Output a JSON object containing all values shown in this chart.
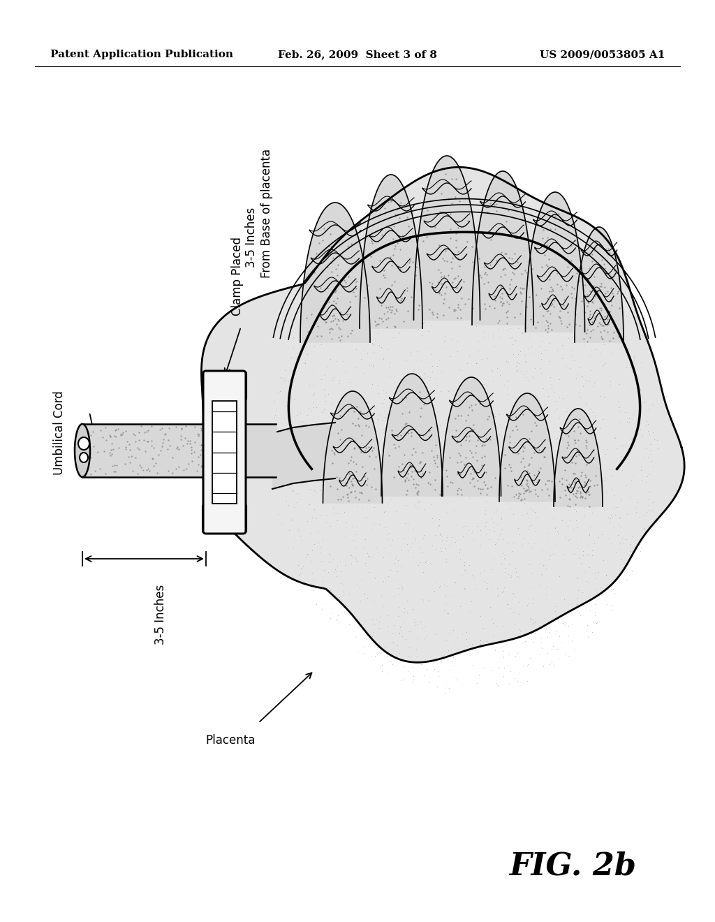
{
  "background_color": "#ffffff",
  "header_left": "Patent Application Publication",
  "header_center": "Feb. 26, 2009  Sheet 3 of 8",
  "header_right": "US 2009/0053805 A1",
  "header_fontsize": 11,
  "fig_label": "FIG. 2b",
  "fig_label_fontsize": 32,
  "label_umbilical_cord": "Umbilical Cord",
  "label_clamp": "Clamp Placed\n3-5 Inches\nFrom Base of placenta",
  "label_inches": "3-5 Inches",
  "label_placenta": "Placenta"
}
